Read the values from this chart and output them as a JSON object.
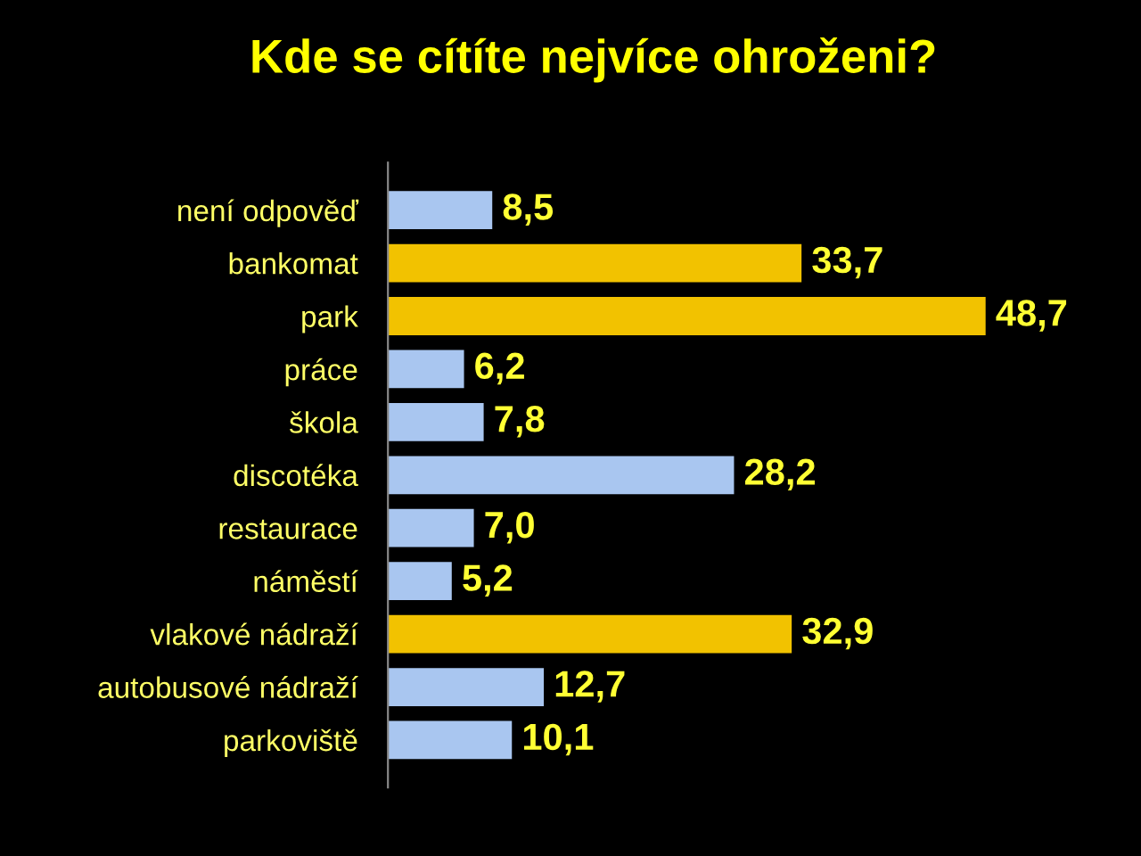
{
  "chart_data": {
    "type": "bar",
    "orientation": "horizontal",
    "title": "Kde se cítíte nejvíce ohroženi?",
    "categories": [
      "není odpověď",
      "bankomat",
      "park",
      "práce",
      "škola",
      "discotéka",
      "restaurace",
      "náměstí",
      "vlakové nádraží",
      "autobusové nádraží",
      "parkoviště"
    ],
    "values": [
      8.5,
      33.7,
      48.7,
      6.2,
      7.8,
      28.2,
      7.0,
      5.2,
      32.9,
      12.7,
      10.1
    ],
    "colors": [
      "#a9c6f0",
      "#f2c200",
      "#f2c200",
      "#a9c6f0",
      "#a9c6f0",
      "#a9c6f0",
      "#a9c6f0",
      "#a9c6f0",
      "#f2c200",
      "#a9c6f0",
      "#a9c6f0"
    ],
    "value_labels": [
      "8,5",
      "33,7",
      "48,7",
      "6,2",
      "7,8",
      "28,2",
      "7,0",
      "5,2",
      "32,9",
      "12,7",
      "10,1"
    ],
    "grid": false,
    "legend": false
  }
}
